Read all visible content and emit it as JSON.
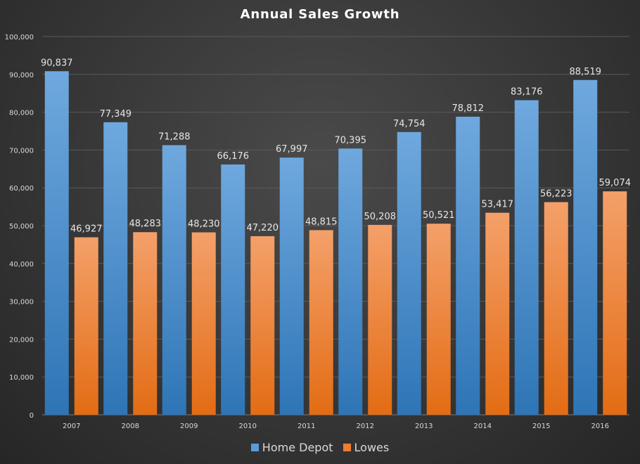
{
  "chart_data": {
    "type": "bar",
    "title": "Annual Sales Growth",
    "xlabel": "",
    "ylabel": "",
    "categories": [
      "2007",
      "2008",
      "2009",
      "2010",
      "2011",
      "2012",
      "2013",
      "2014",
      "2015",
      "2016"
    ],
    "series": [
      {
        "name": "Home Depot",
        "color": "#5b9bd5",
        "values": [
          90837,
          77349,
          71288,
          66176,
          67997,
          70395,
          74754,
          78812,
          83176,
          88519
        ],
        "labels": [
          "90,837",
          "77,349",
          "71,288",
          "66,176",
          "67,997",
          "70,395",
          "74,754",
          "78,812",
          "83,176",
          "88,519"
        ]
      },
      {
        "name": "Lowes",
        "color": "#ed7d31",
        "values": [
          46927,
          48283,
          48230,
          47220,
          48815,
          50208,
          50521,
          53417,
          56223,
          59074
        ],
        "labels": [
          "46,927",
          "48,283",
          "48,230",
          "47,220",
          "48,815",
          "50,208",
          "50,521",
          "53,417",
          "56,223",
          "59,074"
        ]
      }
    ],
    "ylim": [
      0,
      100000
    ],
    "y_ticks": [
      0,
      10000,
      20000,
      30000,
      40000,
      50000,
      60000,
      70000,
      80000,
      90000,
      100000
    ],
    "y_tick_labels": [
      "0",
      "10,000",
      "20,000",
      "30,000",
      "40,000",
      "50,000",
      "60,000",
      "70,000",
      "80,000",
      "90,000",
      "100,000"
    ],
    "grid": true,
    "legend_position": "bottom"
  }
}
